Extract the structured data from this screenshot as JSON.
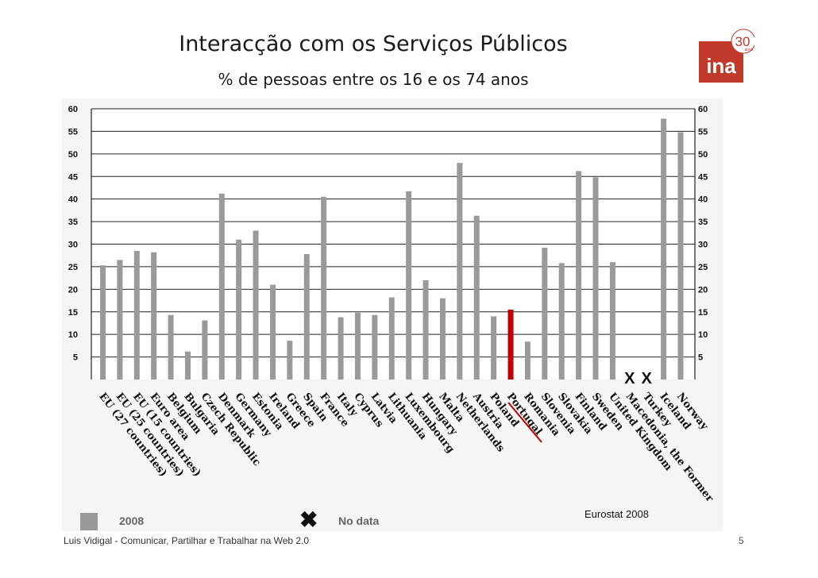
{
  "slide": {
    "footer": "Luis Vidigal - Comunicar, Partilhar e Trabalhar na Web 2.0",
    "page_number": "5",
    "source": "Eurostat 2008",
    "logo": {
      "brand": "ina",
      "badge": "30",
      "badge_sub": "anos",
      "badge_years": "1979 - 2009",
      "accent_color": "#c0392b"
    }
  },
  "chart_data": {
    "type": "bar",
    "title": "Interacção com os Serviços Públicos",
    "subtitle": "% de pessoas entre os 16 e os 74 anos",
    "categories": [
      "EU (27 countries)",
      "EU (25 countries)",
      "EU (15 countries)",
      "Euro area",
      "Belgium",
      "Bulgaria",
      "Czech Republic",
      "Denmark",
      "Germany",
      "Estonia",
      "Ireland",
      "Greece",
      "Spain",
      "France",
      "Italy",
      "Cyprus",
      "Latvia",
      "Lithuania",
      "Luxembourg",
      "Hungary",
      "Malta",
      "Netherlands",
      "Austria",
      "Poland",
      "Portugal",
      "Romania",
      "Slovenia",
      "Slovakia",
      "Finland",
      "Sweden",
      "United Kingdom",
      "Macedonia, the Former",
      "Turkey",
      "Iceland",
      "Norway"
    ],
    "values": [
      25.3,
      26.5,
      28.5,
      28.2,
      14.3,
      6.2,
      13.1,
      41.2,
      31.0,
      33.0,
      21.0,
      8.6,
      27.8,
      40.5,
      13.8,
      14.8,
      14.3,
      18.2,
      41.7,
      22.0,
      18.0,
      48.0,
      36.3,
      14.0,
      15.5,
      8.4,
      29.2,
      25.8,
      46.2,
      44.8,
      26.0,
      null,
      null,
      57.8,
      54.8
    ],
    "highlight": "Portugal",
    "bar_color": "#9a9a9a",
    "highlight_color": "#c00000",
    "no_data_marker": "X",
    "ylim": [
      0,
      60
    ],
    "yticks": [
      5,
      10,
      15,
      20,
      25,
      30,
      35,
      40,
      45,
      50,
      55,
      60
    ],
    "grid": true,
    "legend": [
      {
        "label": "2008",
        "kind": "bar"
      },
      {
        "label": "No data",
        "kind": "marker",
        "symbol": "✖"
      }
    ]
  }
}
